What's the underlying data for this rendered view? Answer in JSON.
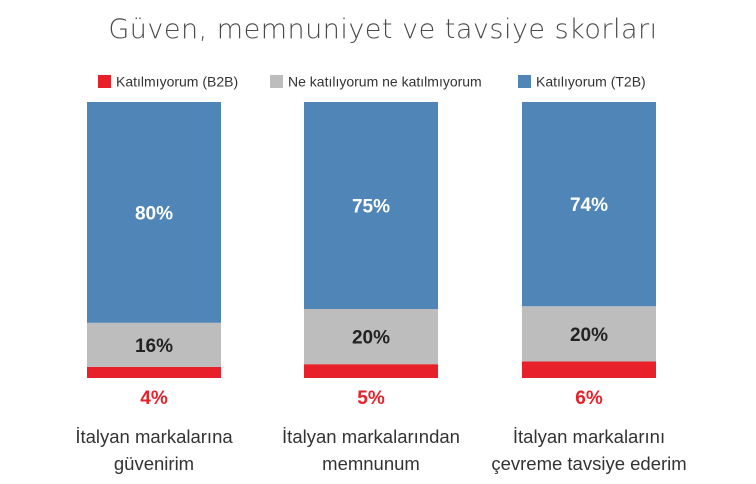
{
  "chart_data": {
    "type": "bar",
    "stacked": true,
    "title": "Güven, memnuniyet ve tavsiye skorları",
    "categories": [
      [
        "İtalyan markalarına",
        "güvenirim"
      ],
      [
        "İtalyan markalarından",
        "memnunum"
      ],
      [
        "İtalyan markalarını",
        "çevreme tavsiye ederim"
      ]
    ],
    "series": [
      {
        "name": "Katılmıyorum (B2B)",
        "values": [
          4,
          5,
          6
        ],
        "color": "#e8202a",
        "value_labels": [
          "4%",
          "5%",
          "6%"
        ]
      },
      {
        "name": "Ne katılıyorum ne katılmıyorum",
        "values": [
          16,
          20,
          20
        ],
        "color": "#bdbdbd",
        "value_labels": [
          "16%",
          "20%",
          "20%"
        ]
      },
      {
        "name": "Katılıyorum (T2B)",
        "values": [
          80,
          75,
          74
        ],
        "color": "#4f86b7",
        "value_labels": [
          "80%",
          "75%",
          "74%"
        ]
      }
    ],
    "ylim": [
      0,
      100
    ],
    "legend_position": "top",
    "grid": false
  }
}
